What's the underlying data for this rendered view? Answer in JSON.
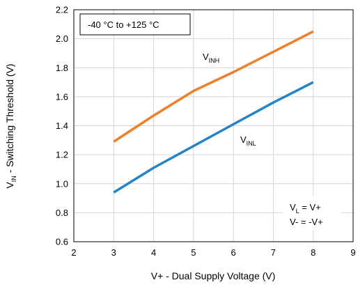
{
  "chart_data": {
    "type": "line",
    "xlabel": "V+ - Dual Supply Voltage (V)",
    "ylabel": {
      "main": "V",
      "sub": "IN",
      "rest": " - Switching Threshold (V)"
    },
    "xlim": [
      2,
      9
    ],
    "ylim": [
      0.6,
      2.2
    ],
    "xticks": [
      "2",
      "3",
      "4",
      "5",
      "6",
      "7",
      "8",
      "9"
    ],
    "yticks": [
      "0.6",
      "0.8",
      "1.0",
      "1.2",
      "1.4",
      "1.6",
      "1.8",
      "2.0",
      "2.2"
    ],
    "grid": true,
    "series": [
      {
        "name": "V_INH",
        "label_main": "V",
        "label_sub": "INH",
        "color": "#F07F2A",
        "x": [
          3,
          4,
          5,
          6,
          7,
          8
        ],
        "y": [
          1.29,
          1.47,
          1.64,
          1.77,
          1.91,
          2.05
        ]
      },
      {
        "name": "V_INL",
        "label_main": "V",
        "label_sub": "INL",
        "color": "#2384C7",
        "x": [
          3,
          4,
          5,
          6,
          7,
          8
        ],
        "y": [
          0.94,
          1.11,
          1.26,
          1.41,
          1.56,
          1.7
        ]
      }
    ],
    "annotations": {
      "temperature": "-40 °C to +125 °C",
      "vl_main": "V",
      "vl_sub": "L",
      "vl_rest": " = V+",
      "vminus": "V- = -V+"
    }
  }
}
